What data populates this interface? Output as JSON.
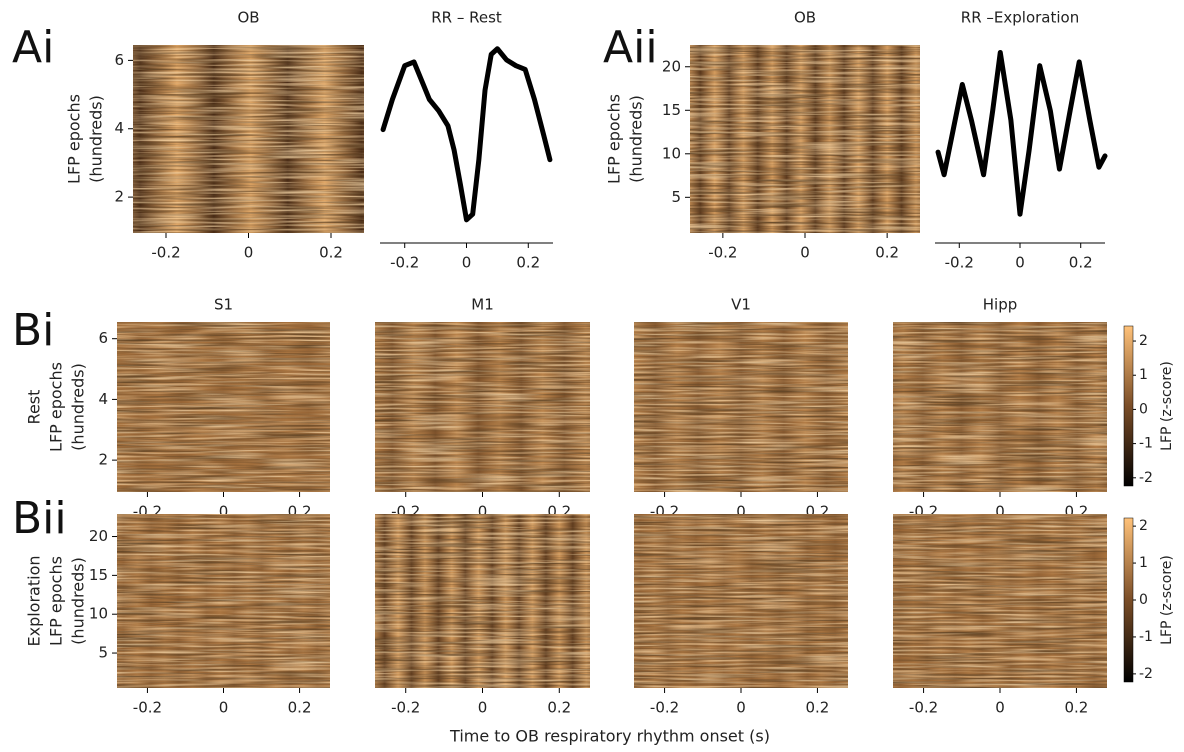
{
  "panel_labels": [
    "Ai",
    "Aii",
    "Bi",
    "Bii"
  ],
  "xlabel": "Time to OB respiratory rhythm onset (s)",
  "chart_data": [
    {
      "type": "heatmap",
      "title": "OB",
      "ylabel": [
        "LFP epochs",
        "(hundreds)"
      ],
      "xlim": [
        -0.28,
        0.28
      ],
      "xticks": [
        -0.2,
        0,
        0.2
      ],
      "ylim": [
        0.95,
        6.45
      ],
      "yticks": [
        2,
        4,
        6
      ]
    },
    {
      "type": "line",
      "title": "RR – Rest",
      "color": "#000000",
      "xlim": [
        -0.28,
        0.28
      ],
      "xticks": [
        -0.2,
        0,
        0.2
      ],
      "ylim": [
        0,
        1
      ],
      "x": [
        -0.27,
        -0.24,
        -0.2,
        -0.17,
        -0.14,
        -0.12,
        -0.09,
        -0.06,
        -0.04,
        -0.02,
        0,
        0.02,
        0.04,
        0.06,
        0.08,
        0.1,
        0.13,
        0.16,
        0.19,
        0.22,
        0.25,
        0.27
      ],
      "values": [
        0.55,
        0.71,
        0.89,
        0.91,
        0.79,
        0.71,
        0.65,
        0.57,
        0.44,
        0.26,
        0.07,
        0.1,
        0.39,
        0.76,
        0.95,
        0.98,
        0.92,
        0.89,
        0.87,
        0.71,
        0.52,
        0.39
      ]
    },
    {
      "type": "heatmap",
      "title": "OB",
      "ylabel": [
        "LFP epochs",
        "(hundreds)"
      ],
      "xlim": [
        -0.28,
        0.28
      ],
      "xticks": [
        -0.2,
        0,
        0.2
      ],
      "ylim": [
        0.9,
        22.5
      ],
      "yticks": [
        5,
        10,
        15,
        20
      ]
    },
    {
      "type": "line",
      "title": "RR –Exploration",
      "color": "#000000",
      "xlim": [
        -0.28,
        0.28
      ],
      "xticks": [
        -0.2,
        0,
        0.2
      ],
      "ylim": [
        0,
        1
      ],
      "x": [
        -0.27,
        -0.25,
        -0.22,
        -0.19,
        -0.16,
        -0.12,
        -0.09,
        -0.065,
        -0.03,
        0,
        0.03,
        0.065,
        0.1,
        0.13,
        0.165,
        0.195,
        0.23,
        0.26,
        0.28
      ],
      "values": [
        0.43,
        0.31,
        0.55,
        0.79,
        0.6,
        0.31,
        0.65,
        0.96,
        0.6,
        0.1,
        0.44,
        0.89,
        0.65,
        0.34,
        0.65,
        0.91,
        0.6,
        0.35,
        0.41
      ]
    },
    {
      "type": "heatmap",
      "title": "S1",
      "ylabel": [
        "Rest",
        "LFP epochs",
        "(hundreds)"
      ],
      "xlim": [
        -0.28,
        0.28
      ],
      "xticks": [
        -0.2,
        0,
        0.2
      ],
      "ylim": [
        0.95,
        6.55
      ],
      "yticks": [
        2,
        4,
        6
      ]
    },
    {
      "type": "heatmap",
      "title": "M1",
      "xlim": [
        -0.28,
        0.28
      ],
      "xticks": [
        -0.2,
        0,
        0.2
      ],
      "ylim": [
        0.95,
        6.55
      ]
    },
    {
      "type": "heatmap",
      "title": "V1",
      "xlim": [
        -0.28,
        0.28
      ],
      "xticks": [
        -0.2,
        0,
        0.2
      ],
      "ylim": [
        0.95,
        6.55
      ]
    },
    {
      "type": "heatmap",
      "title": "Hipp",
      "xlim": [
        -0.28,
        0.28
      ],
      "xticks": [
        -0.2,
        0,
        0.2
      ],
      "ylim": [
        0.95,
        6.55
      ],
      "colorbar": {
        "label": "LFP (z-score)",
        "clim": [
          -2.24,
          2.44
        ],
        "ticks": [
          -2,
          -1,
          0,
          1,
          2
        ]
      }
    },
    {
      "type": "heatmap",
      "ylabel": [
        "Exploration",
        "LFP epochs",
        "(hundreds)"
      ],
      "xlim": [
        -0.28,
        0.28
      ],
      "xticks": [
        -0.2,
        0,
        0.2
      ],
      "ylim": [
        0.5,
        22.9
      ],
      "yticks": [
        5,
        10,
        15,
        20
      ]
    },
    {
      "type": "heatmap",
      "xlim": [
        -0.28,
        0.28
      ],
      "xticks": [
        -0.2,
        0,
        0.2
      ],
      "ylim": [
        0.5,
        22.9
      ]
    },
    {
      "type": "heatmap",
      "xlim": [
        -0.28,
        0.28
      ],
      "xticks": [
        -0.2,
        0,
        0.2
      ],
      "ylim": [
        0.5,
        22.9
      ]
    },
    {
      "type": "heatmap",
      "xlim": [
        -0.28,
        0.28
      ],
      "xticks": [
        -0.2,
        0,
        0.2
      ],
      "ylim": [
        0.5,
        22.9
      ],
      "colorbar": {
        "label": "LFP (z-score)",
        "clim": [
          -2.22,
          2.22
        ],
        "ticks": [
          -2,
          -1,
          0,
          1,
          2
        ]
      }
    }
  ]
}
